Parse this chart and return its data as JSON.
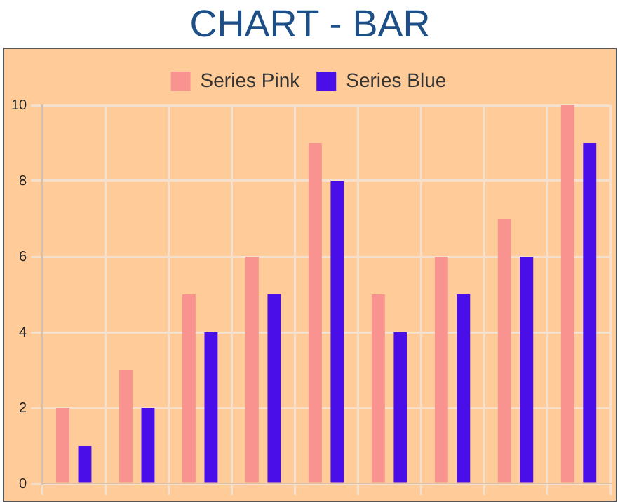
{
  "chart_data": {
    "type": "bar",
    "title": "CHART - BAR",
    "categories": [
      null,
      null,
      null,
      null,
      null,
      null,
      null,
      null,
      null
    ],
    "series": [
      {
        "name": "Series Pink",
        "color": "#f99390",
        "values": [
          2,
          3,
          5,
          6,
          9,
          5,
          6,
          7,
          10
        ]
      },
      {
        "name": "Series Blue",
        "color": "#4a0fe8",
        "values": [
          1,
          2,
          4,
          5,
          8,
          4,
          5,
          6,
          9
        ]
      }
    ],
    "ylim": [
      0,
      10
    ],
    "yticks": [
      0,
      2,
      4,
      6,
      8,
      10
    ],
    "grid": true,
    "legend": "top"
  }
}
